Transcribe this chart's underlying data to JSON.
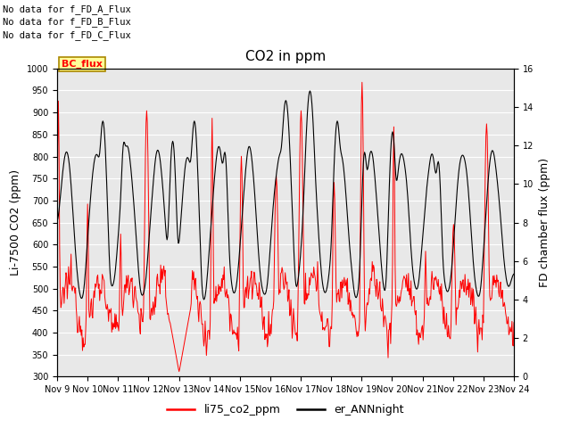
{
  "title": "CO2 in ppm",
  "ylabel_left": "Li-7500 CO2 (ppm)",
  "ylabel_right": "FD chamber flux (ppm)",
  "ylim_left": [
    300,
    1000
  ],
  "ylim_right": [
    0,
    16
  ],
  "yticks_left": [
    300,
    350,
    400,
    450,
    500,
    550,
    600,
    650,
    700,
    750,
    800,
    850,
    900,
    950,
    1000
  ],
  "yticks_right": [
    0,
    2,
    4,
    6,
    8,
    10,
    12,
    14,
    16
  ],
  "xtick_labels": [
    "Nov 9",
    "Nov 10",
    "Nov 11",
    "Nov 12",
    "Nov 13",
    "Nov 14",
    "Nov 15",
    "Nov 16",
    "Nov 17",
    "Nov 18",
    "Nov 19",
    "Nov 20",
    "Nov 21",
    "Nov 22",
    "Nov 23",
    "Nov 24"
  ],
  "text_lines": [
    "No data for f_FD_A_Flux",
    "No data for f_FD_B_Flux",
    "No data for f_FD_C_Flux"
  ],
  "legend_box_text": "BC_flux",
  "legend_box_color": "#ffff99",
  "legend_box_edge": "#aa8800",
  "line1_label": "li75_co2_ppm",
  "line1_color": "#ff0000",
  "line2_label": "er_ANNnight",
  "line2_color": "#000000",
  "plot_bg_color": "#e8e8e8",
  "grid_color": "#ffffff",
  "title_fontsize": 11,
  "axis_fontsize": 9,
  "tick_fontsize": 7,
  "seed": 12345
}
